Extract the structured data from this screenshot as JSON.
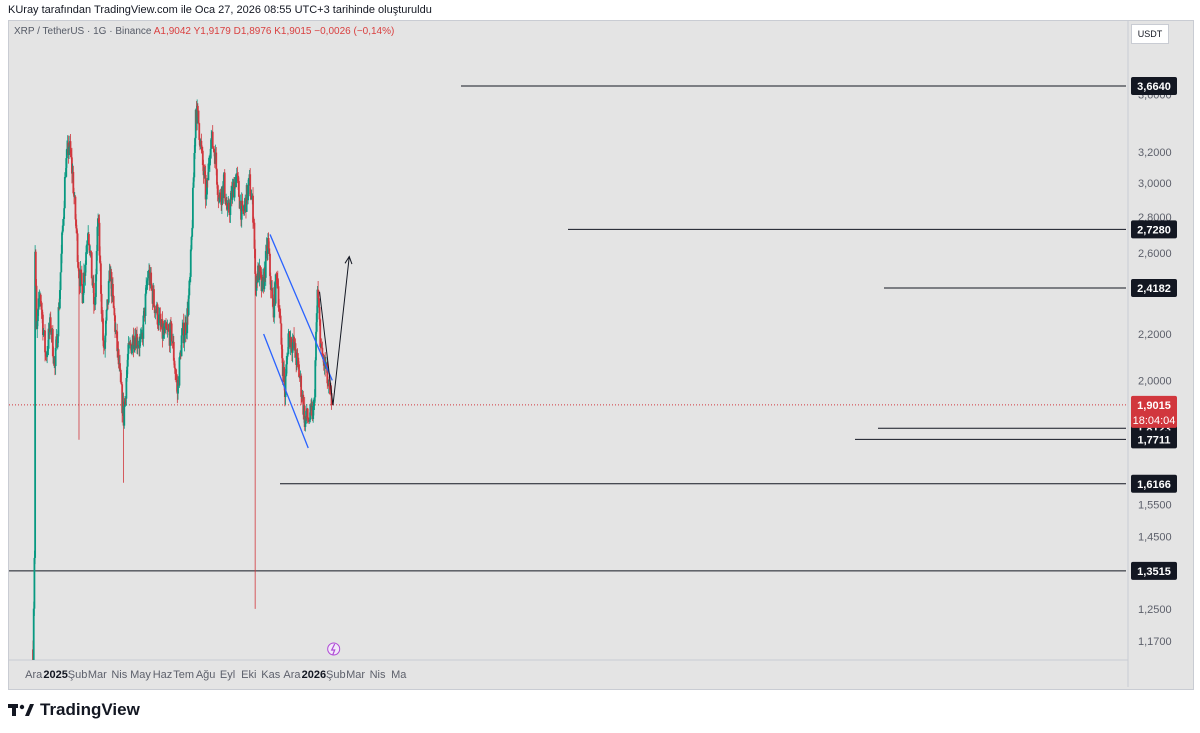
{
  "header": {
    "caption": "KUray tarafından TradingView.com ile Oca 27, 2026 08:55 UTC+3 tarihinde oluşturuldu"
  },
  "symbol": {
    "name": "XRP / TetherUS · 1G · Binance",
    "open": "A1,9042",
    "high": "Y1,9179",
    "low": "D1,8976",
    "close": "K1,9015",
    "change": "−0,0026 (−0,14%)"
  },
  "currency": "USDT",
  "brand": {
    "name": "TradingView"
  },
  "chart_data": {
    "type": "candlestick",
    "symbol": "XRP / TetherUS",
    "interval": "1G",
    "exchange": "Binance",
    "y_scale": "log",
    "ylim": [
      1.12,
      3.78
    ],
    "y_ticks": [
      "3,6000",
      "3,2000",
      "3,0000",
      "2,8000",
      "2,6000",
      "2,2000",
      "2,0000",
      "1,5500",
      "1,4500",
      "1,2500",
      "1,1700"
    ],
    "x_ticks": [
      "Ara",
      "2025",
      "Şub",
      "Mar",
      "Nis",
      "May",
      "Haz",
      "Tem",
      "Ağu",
      "Eyl",
      "Eki",
      "Kas",
      "Ara",
      "2026",
      "Şub",
      "Mar",
      "Nis",
      "Ma"
    ],
    "x_ticks_bold": [
      "2025",
      "2026"
    ],
    "levels": [
      {
        "label": "3,6640",
        "value": 3.664
      },
      {
        "label": "2,7280",
        "value": 2.728
      },
      {
        "label": "2,4182",
        "value": 2.4182
      },
      {
        "label": "1,8123",
        "value": 1.8123
      },
      {
        "label": "1,7711",
        "value": 1.7711
      },
      {
        "label": "1,6166",
        "value": 1.6166
      },
      {
        "label": "1,3515",
        "value": 1.3515
      }
    ],
    "current_price": {
      "label": "1,9015",
      "value": 1.9015,
      "countdown": "18:04:04"
    },
    "colors": {
      "up": "#089981",
      "down": "#d1373d",
      "channel": "#2962ff",
      "level": "#131722",
      "price": "#d1373d"
    },
    "price_path": [
      {
        "date": "2024-11-30",
        "value": 1.15
      },
      {
        "date": "2024-12-02",
        "value": 1.4
      },
      {
        "date": "2024-12-03",
        "value": 2.6
      },
      {
        "date": "2024-12-05",
        "value": 2.2
      },
      {
        "date": "2024-12-10",
        "value": 2.4
      },
      {
        "date": "2024-12-18",
        "value": 2.1
      },
      {
        "date": "2024-12-25",
        "value": 2.25
      },
      {
        "date": "2024-12-31",
        "value": 2.05
      },
      {
        "date": "2025-01-06",
        "value": 2.35
      },
      {
        "date": "2025-01-15",
        "value": 3.1
      },
      {
        "date": "2025-01-20",
        "value": 3.25
      },
      {
        "date": "2025-01-25",
        "value": 3.05
      },
      {
        "date": "2025-02-03",
        "value": 2.5
      },
      {
        "date": "2025-02-08",
        "value": 2.4
      },
      {
        "date": "2025-02-16",
        "value": 2.75
      },
      {
        "date": "2025-02-25",
        "value": 2.3
      },
      {
        "date": "2025-03-02",
        "value": 2.8
      },
      {
        "date": "2025-03-10",
        "value": 2.1
      },
      {
        "date": "2025-03-19",
        "value": 2.5
      },
      {
        "date": "2025-03-30",
        "value": 2.1
      },
      {
        "date": "2025-04-07",
        "value": 1.85
      },
      {
        "date": "2025-04-13",
        "value": 2.1
      },
      {
        "date": "2025-04-22",
        "value": 2.2
      },
      {
        "date": "2025-05-02",
        "value": 2.15
      },
      {
        "date": "2025-05-12",
        "value": 2.5
      },
      {
        "date": "2025-05-20",
        "value": 2.35
      },
      {
        "date": "2025-06-01",
        "value": 2.2
      },
      {
        "date": "2025-06-14",
        "value": 2.2
      },
      {
        "date": "2025-06-22",
        "value": 1.95
      },
      {
        "date": "2025-06-28",
        "value": 2.18
      },
      {
        "date": "2025-07-05",
        "value": 2.25
      },
      {
        "date": "2025-07-10",
        "value": 2.45
      },
      {
        "date": "2025-07-14",
        "value": 2.9
      },
      {
        "date": "2025-07-18",
        "value": 3.5
      },
      {
        "date": "2025-07-22",
        "value": 3.4
      },
      {
        "date": "2025-07-27",
        "value": 3.15
      },
      {
        "date": "2025-08-02",
        "value": 2.9
      },
      {
        "date": "2025-08-08",
        "value": 3.3
      },
      {
        "date": "2025-08-14",
        "value": 3.2
      },
      {
        "date": "2025-08-20",
        "value": 2.9
      },
      {
        "date": "2025-08-27",
        "value": 3.0
      },
      {
        "date": "2025-09-01",
        "value": 2.8
      },
      {
        "date": "2025-09-13",
        "value": 3.05
      },
      {
        "date": "2025-09-22",
        "value": 2.8
      },
      {
        "date": "2025-10-02",
        "value": 3.0
      },
      {
        "date": "2025-10-08",
        "value": 2.8
      },
      {
        "date": "2025-10-10",
        "value": 2.45
      },
      {
        "date": "2025-10-15",
        "value": 2.5
      },
      {
        "date": "2025-10-20",
        "value": 2.4
      },
      {
        "date": "2025-10-28",
        "value": 2.65
      },
      {
        "date": "2025-11-04",
        "value": 2.3
      },
      {
        "date": "2025-11-10",
        "value": 2.5
      },
      {
        "date": "2025-11-16",
        "value": 2.15
      },
      {
        "date": "2025-11-21",
        "value": 1.95
      },
      {
        "date": "2025-11-26",
        "value": 2.2
      },
      {
        "date": "2025-12-03",
        "value": 2.15
      },
      {
        "date": "2025-12-10",
        "value": 2.05
      },
      {
        "date": "2025-12-15",
        "value": 1.95
      },
      {
        "date": "2025-12-19",
        "value": 1.85
      },
      {
        "date": "2025-12-26",
        "value": 1.85
      },
      {
        "date": "2026-01-01",
        "value": 1.88
      },
      {
        "date": "2026-01-06",
        "value": 2.4
      },
      {
        "date": "2026-01-12",
        "value": 2.1
      },
      {
        "date": "2026-01-18",
        "value": 2.05
      },
      {
        "date": "2026-01-22",
        "value": 1.95
      },
      {
        "date": "2026-01-26",
        "value": 1.9015
      }
    ],
    "long_wicks": [
      {
        "date": "2025-10-10",
        "high": 2.65,
        "low": 1.25
      },
      {
        "date": "2025-04-07",
        "high": 1.95,
        "low": 1.62
      },
      {
        "date": "2025-02-03",
        "high": 2.55,
        "low": 1.77
      }
    ],
    "channel": {
      "upper": [
        {
          "date": "2025-10-31",
          "value": 2.7
        },
        {
          "date": "2026-01-27",
          "value": 2.0
        }
      ],
      "lower": [
        {
          "date": "2025-10-22",
          "value": 2.2
        },
        {
          "date": "2025-12-24",
          "value": 1.74
        }
      ]
    },
    "projection": [
      {
        "date": "2026-01-09",
        "value": 2.4
      },
      {
        "date": "2026-01-28",
        "value": 1.9
      },
      {
        "date": "2026-02-20",
        "value": 2.58
      }
    ]
  }
}
